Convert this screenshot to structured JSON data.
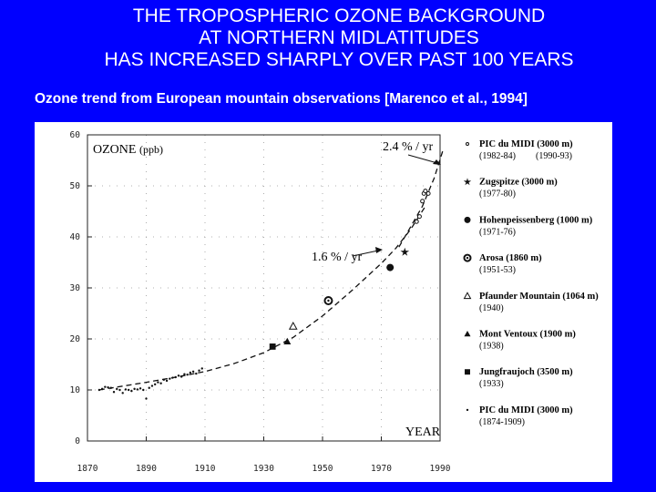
{
  "slide": {
    "title_lines": [
      "THE TROPOSPHERIC OZONE BACKGROUND",
      "AT NORTHERN MIDLATITUDES",
      "HAS INCREASED SHARPLY OVER PAST 100 YEARS"
    ],
    "subtitle": "Ozone trend from European mountain observations [Marenco et al., 1994]"
  },
  "chart_data": {
    "type": "scatter",
    "title": "OZONE",
    "ylabel_unit": "(ppb)",
    "xlabel": "YEAR",
    "xlim": [
      1870,
      1990
    ],
    "ylim": [
      0,
      60
    ],
    "x_ticks": [
      "1870",
      "1890",
      "1910",
      "1930",
      "1950",
      "1970",
      "1990"
    ],
    "y_ticks": [
      "0",
      "10",
      "20",
      "30",
      "40",
      "50",
      "60"
    ],
    "grid": true,
    "legend_position": "right",
    "annotations": [
      {
        "text": "2.4 % / yr",
        "x": 1980,
        "y": 54
      },
      {
        "text": "1.6 % / yr",
        "x": 1962,
        "y": 38
      }
    ],
    "series": [
      {
        "name": "PIC du MIDI  (3000 m)",
        "periods": [
          "(1982-84)",
          "(1990-93)"
        ],
        "marker": "circle-open",
        "x": [
          1982,
          1983,
          1984,
          1984.5,
          1985,
          1986
        ],
        "y": [
          43,
          44,
          47,
          48.5,
          49,
          48.5
        ]
      },
      {
        "name": "Zugspitze  (3000 m)",
        "periods": [
          "(1977-80)"
        ],
        "marker": "star",
        "x": [
          1978
        ],
        "y": [
          37
        ]
      },
      {
        "name": "Hohenpeissenberg (1000 m)",
        "periods": [
          "(1971-76)"
        ],
        "marker": "circle-filled",
        "x": [
          1973
        ],
        "y": [
          34
        ]
      },
      {
        "name": "Arosa   (1860 m)",
        "periods": [
          "(1951-53)"
        ],
        "marker": "circle-cross",
        "x": [
          1952
        ],
        "y": [
          27.5
        ]
      },
      {
        "name": "Pfaunder Mountain (1064 m)",
        "periods": [
          "(1940)"
        ],
        "marker": "triangle-open",
        "x": [
          1940
        ],
        "y": [
          22.5
        ]
      },
      {
        "name": "Mont Ventoux  (1900 m)",
        "periods": [
          "(1938)"
        ],
        "marker": "triangle-filled",
        "x": [
          1938
        ],
        "y": [
          19.5
        ]
      },
      {
        "name": "Jungfraujoch  (3500 m)",
        "periods": [
          "(1933)"
        ],
        "marker": "square-filled",
        "x": [
          1933
        ],
        "y": [
          18.5
        ]
      },
      {
        "name": "PIC du MIDI  (3000 m)",
        "periods": [
          "(1874-1909)"
        ],
        "marker": "dot",
        "x": [
          1874,
          1875,
          1876,
          1877,
          1878,
          1879,
          1880,
          1881,
          1882,
          1883,
          1884,
          1885,
          1886,
          1887,
          1888,
          1889,
          1890,
          1891,
          1892,
          1893,
          1894,
          1895,
          1896,
          1897,
          1898,
          1899,
          1900,
          1901,
          1902,
          1903,
          1904,
          1905,
          1906,
          1907,
          1908,
          1909
        ],
        "y": [
          10,
          10.2,
          10.6,
          10.5,
          10.4,
          9.6,
          10.2,
          10,
          9.4,
          10.1,
          10,
          9.8,
          10.2,
          10.1,
          10.3,
          10,
          8.3,
          10.4,
          10.8,
          11.1,
          11.5,
          11.3,
          12,
          11.8,
          12.2,
          12.4,
          12.5,
          12.8,
          12.6,
          13.1,
          13,
          13.4,
          13.6,
          13.2,
          13.8,
          14.2
        ]
      }
    ],
    "trend_curves": [
      {
        "x": [
          1874,
          1890,
          1900,
          1910,
          1920,
          1930,
          1940,
          1950,
          1960,
          1970,
          1975,
          1980,
          1985
        ],
        "y": [
          10,
          11.5,
          12.5,
          13.6,
          15.2,
          17.3,
          20.3,
          24.5,
          29.5,
          34.8,
          37.8,
          41.5,
          46
        ]
      },
      {
        "x": [
          1976,
          1980,
          1984,
          1988,
          1991
        ],
        "y": [
          38,
          42,
          46,
          51.5,
          57
        ]
      }
    ]
  }
}
